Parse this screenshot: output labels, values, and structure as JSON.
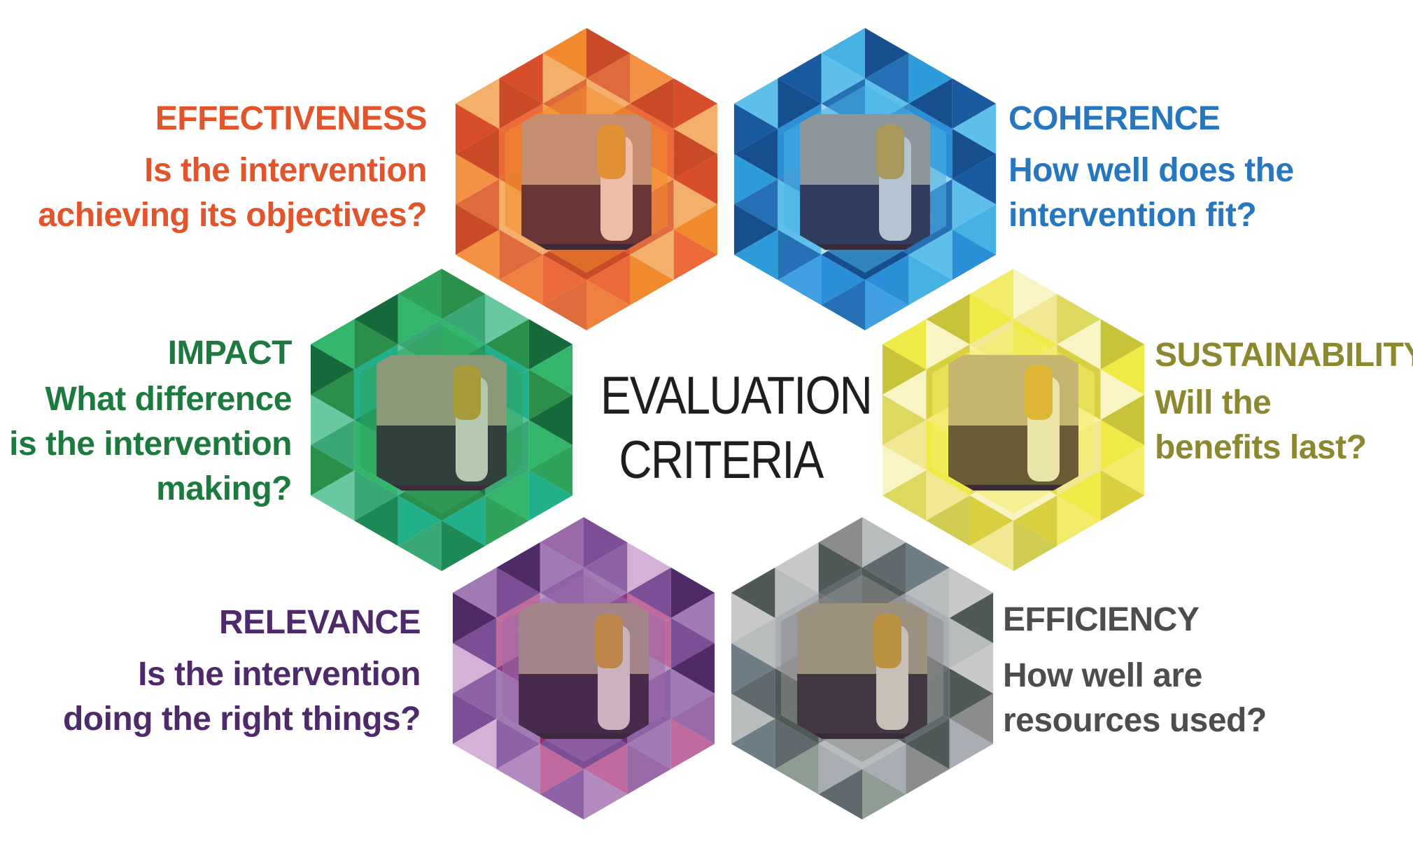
{
  "center": {
    "line1": "EVALUATION",
    "line2": "CRITERIA"
  },
  "criteria": [
    {
      "id": "effectiveness",
      "title": "EFFECTIVENESS",
      "question": [
        "Is the intervention",
        "achieving its objectives?"
      ],
      "color": "#e2552c",
      "palette": [
        "#e8542a",
        "#f08a2c",
        "#ec6a3a",
        "#f6a04a",
        "#d94e2a",
        "#f4b06a",
        "#e07032",
        "#f39244",
        "#c84a26",
        "#f5a878",
        "#ee8040",
        "#df6b3c"
      ]
    },
    {
      "id": "coherence",
      "title": "COHERENCE",
      "question": [
        "How well does the",
        "intervention fit?"
      ],
      "color": "#2677c0",
      "palette": [
        "#1e6fbd",
        "#47b1e4",
        "#2a8fd6",
        "#9fd4ee",
        "#1a5aa0",
        "#5ec0ea",
        "#3a86c8",
        "#2d9ad9",
        "#174f8e",
        "#b6e2e4",
        "#3f9fe0",
        "#2670b6"
      ]
    },
    {
      "id": "impact",
      "title": "IMPACT",
      "question": [
        "What difference",
        "is the intervention",
        "making?"
      ],
      "color": "#1c7a3e",
      "palette": [
        "#1a7a44",
        "#2fa35c",
        "#22b08a",
        "#58c49a",
        "#15693a",
        "#34b56c",
        "#1f9160",
        "#69c8a0",
        "#2b8f4c",
        "#47b88c",
        "#1d8a56",
        "#3aa874"
      ]
    },
    {
      "id": "sustainability",
      "title": "SUSTAINABILITY",
      "question": [
        "Will the",
        "benefits last?"
      ],
      "color": "#8c8830",
      "palette": [
        "#e4e02a",
        "#f2ec6a",
        "#d8d040",
        "#f6f2a8",
        "#c8c43a",
        "#eeea48",
        "#f4e87e",
        "#dcd860",
        "#f8f4c4",
        "#e6de58",
        "#cfcc52",
        "#f0e892"
      ]
    },
    {
      "id": "relevance",
      "title": "RELEVANCE",
      "question": [
        "Is the intervention",
        "doing the right things?"
      ],
      "color": "#4f2a6a",
      "palette": [
        "#6a2d7e",
        "#9a6aa8",
        "#c06a9e",
        "#b897c6",
        "#4e2a66",
        "#a07ab4",
        "#8a3a86",
        "#d4b2d6",
        "#7b4e96",
        "#9c2a6a",
        "#b38ac0",
        "#8e62a6"
      ]
    },
    {
      "id": "efficiency",
      "title": "EFFICIENCY",
      "question": [
        "How well are",
        "resources used?"
      ],
      "color": "#4d4d4d",
      "palette": [
        "#5a5a5a",
        "#8c8c8c",
        "#a8aeb4",
        "#707070",
        "#c8c8c8",
        "#4f5a58",
        "#9a9aa0",
        "#6e7e86",
        "#b8bcbc",
        "#7c8890",
        "#8e9c94",
        "#606a6e"
      ]
    }
  ]
}
